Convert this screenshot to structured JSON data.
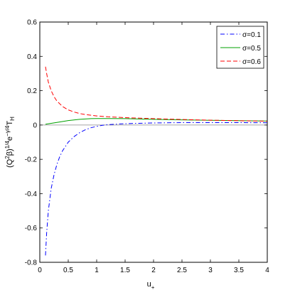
{
  "chart_data": {
    "type": "line",
    "xlabel": "u",
    "xlabel_sub": "+",
    "ylabel_main": "(Q",
    "ylabel_sup1": "2",
    "ylabel_mid": "β)",
    "ylabel_sup2": "1/4",
    "ylabel_e": "e",
    "ylabel_sup3": "−γ/4",
    "ylabel_T": "T",
    "ylabel_sub": "H",
    "xlim": [
      0,
      4
    ],
    "ylim": [
      -0.8,
      0.6
    ],
    "xticks": [
      "0",
      "0.5",
      "1",
      "1.5",
      "2",
      "2.5",
      "3",
      "3.5",
      "4"
    ],
    "xtick_values": [
      0,
      0.5,
      1,
      1.5,
      2,
      2.5,
      3,
      3.5,
      4
    ],
    "yticks": [
      "-0.8",
      "-0.6",
      "-0.4",
      "-0.2",
      "0",
      "0.2",
      "0.4",
      "0.6"
    ],
    "ytick_values": [
      -0.8,
      -0.6,
      -0.4,
      -0.2,
      0,
      0.2,
      0.4,
      0.6
    ],
    "legend_position": "top-right",
    "series": [
      {
        "name": "σ=0.1",
        "color": "#0000ff",
        "dash": "dashdot",
        "x": [
          0.1,
          0.12,
          0.15,
          0.2,
          0.25,
          0.3,
          0.35,
          0.4,
          0.5,
          0.6,
          0.7,
          0.8,
          0.9,
          1.0,
          1.1,
          1.2,
          1.4,
          1.6,
          2.0,
          2.5,
          3.0,
          3.5,
          4.0
        ],
        "y": [
          -0.76,
          -0.63,
          -0.5,
          -0.37,
          -0.29,
          -0.23,
          -0.185,
          -0.15,
          -0.1,
          -0.068,
          -0.045,
          -0.028,
          -0.016,
          -0.008,
          -0.002,
          0.002,
          0.006,
          0.009,
          0.012,
          0.014,
          0.014,
          0.014,
          0.013
        ]
      },
      {
        "name": "σ=0.5",
        "color": "#00a000",
        "dash": "solid",
        "x": [
          0.1,
          0.3,
          0.5,
          0.7,
          0.9,
          1.0,
          1.2,
          1.5,
          2.0,
          2.5,
          3.0,
          3.5,
          4.0
        ],
        "y": [
          0.005,
          0.015,
          0.026,
          0.033,
          0.037,
          0.038,
          0.038,
          0.037,
          0.033,
          0.03,
          0.027,
          0.025,
          0.023
        ]
      },
      {
        "name": "σ=0.6",
        "color": "#ff0000",
        "dash": "dashed",
        "x": [
          0.1,
          0.12,
          0.15,
          0.2,
          0.25,
          0.3,
          0.4,
          0.5,
          0.6,
          0.7,
          0.8,
          1.0,
          1.2,
          1.5,
          2.0,
          2.5,
          3.0,
          3.5,
          4.0
        ],
        "y": [
          0.34,
          0.3,
          0.25,
          0.2,
          0.165,
          0.14,
          0.108,
          0.088,
          0.076,
          0.067,
          0.061,
          0.053,
          0.048,
          0.043,
          0.037,
          0.032,
          0.028,
          0.025,
          0.022
        ]
      }
    ],
    "zero_line": {
      "y": 0,
      "color": "#888888"
    }
  }
}
